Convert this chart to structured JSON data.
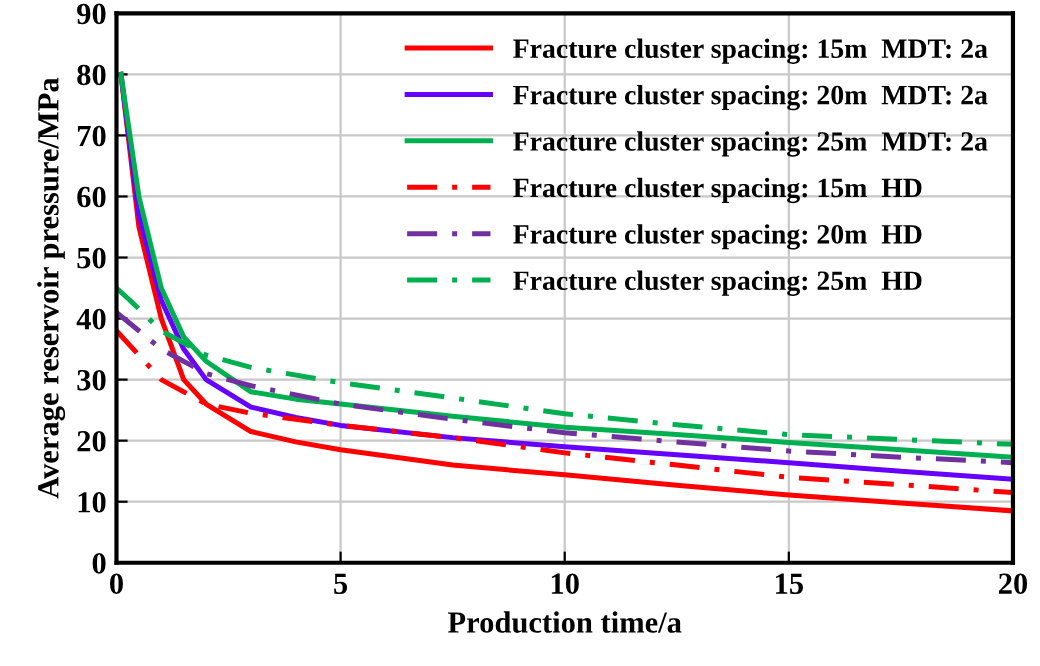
{
  "chart_data": {
    "type": "line",
    "xlabel": "Production time/a",
    "ylabel": "Average reservoir pressure/MPa",
    "xlim": [
      0,
      20
    ],
    "ylim": [
      0,
      90
    ],
    "xticks": [
      0,
      5,
      10,
      15,
      20
    ],
    "yticks": [
      0,
      10,
      20,
      30,
      40,
      50,
      60,
      70,
      80,
      90
    ],
    "grid": true,
    "legend": "top right",
    "marker": "none",
    "series": [
      {
        "name": "Fracture cluster spacing: 15m  MDT: 2a",
        "color": "#ff0000",
        "line_style": "solid",
        "x": [
          0.1,
          0.5,
          1,
          1.5,
          2,
          3,
          4,
          5,
          7.5,
          10,
          12.5,
          15,
          17.5,
          20
        ],
        "values": [
          80,
          55,
          40,
          30,
          26,
          21.5,
          19.8,
          18.5,
          16,
          14.4,
          12.7,
          11.1,
          9.8,
          8.5
        ]
      },
      {
        "name": "Fracture cluster spacing: 20m  MDT: 2a",
        "color": "#6600ff",
        "line_style": "solid",
        "x": [
          0.1,
          0.5,
          1,
          1.5,
          2,
          3,
          4,
          5,
          7.5,
          10,
          12.5,
          15,
          17.5,
          20
        ],
        "values": [
          80,
          57,
          43,
          35,
          30,
          25.5,
          23.8,
          22.5,
          20.5,
          19,
          17.7,
          16.4,
          15,
          13.7
        ]
      },
      {
        "name": "Fracture cluster spacing: 25m  MDT: 2a",
        "color": "#00b050",
        "line_style": "solid",
        "x": [
          0.1,
          0.5,
          1,
          1.5,
          2,
          3,
          4,
          5,
          7.5,
          10,
          12.5,
          15,
          17.5,
          20
        ],
        "values": [
          80,
          60,
          45,
          37,
          33,
          28,
          26.8,
          26,
          24,
          22.2,
          21,
          19.7,
          18.5,
          17.3
        ]
      },
      {
        "name": "Fracture cluster spacing: 15m  HD",
        "color": "#ff0000",
        "line_style": "dashdot",
        "x": [
          0,
          0.5,
          1,
          2,
          3,
          5,
          7.5,
          10,
          12.5,
          15,
          17.5,
          20
        ],
        "values": [
          38,
          34,
          30,
          26,
          24.5,
          22.5,
          20.5,
          18,
          16,
          14,
          12.8,
          11.5
        ]
      },
      {
        "name": "Fracture cluster spacing: 20m  HD",
        "color": "#7030a0",
        "line_style": "dashdot",
        "x": [
          0,
          0.5,
          1,
          2,
          3,
          5,
          7.5,
          10,
          12.5,
          15,
          17.5,
          20
        ],
        "values": [
          41,
          38,
          35,
          31,
          29,
          26,
          23.5,
          21.3,
          19.8,
          18.3,
          17.3,
          16.4
        ]
      },
      {
        "name": "Fracture cluster spacing: 25m  HD",
        "color": "#00b050",
        "line_style": "dashdot",
        "x": [
          0,
          0.3,
          1,
          2,
          3,
          5,
          7.5,
          10,
          12.5,
          15,
          17.5,
          20
        ],
        "values": [
          45,
          43,
          38,
          34,
          32,
          29.5,
          27,
          24.4,
          22.6,
          21,
          20.2,
          19.4
        ]
      }
    ]
  }
}
